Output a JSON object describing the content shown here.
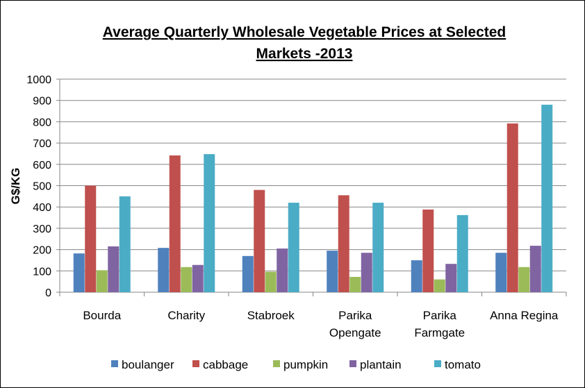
{
  "chart_data": {
    "type": "bar",
    "title_lines": [
      "Average Quarterly Wholesale Vegetable Prices at Selected",
      "Markets -2013"
    ],
    "xlabel": "",
    "ylabel": "G$/KG",
    "ylim": [
      0,
      1000
    ],
    "yticks": [
      0,
      100,
      200,
      300,
      400,
      500,
      600,
      700,
      800,
      900,
      1000
    ],
    "grid": true,
    "legend_position": "bottom",
    "categories": [
      [
        "Bourda"
      ],
      [
        "Charity"
      ],
      [
        "Stabroek"
      ],
      [
        "Parika",
        "Opengate"
      ],
      [
        "Parika",
        "Farmgate"
      ],
      [
        "Anna Regina"
      ]
    ],
    "series": [
      {
        "name": "boulanger",
        "color": "#4F81BD",
        "values": [
          182,
          208,
          170,
          195,
          150,
          185
        ]
      },
      {
        "name": "cabbage",
        "color": "#C0504D",
        "values": [
          500,
          642,
          480,
          455,
          388,
          792
        ]
      },
      {
        "name": "pumpkin",
        "color": "#9BBB59",
        "values": [
          103,
          118,
          96,
          72,
          60,
          118
        ]
      },
      {
        "name": "plantain",
        "color": "#8064A2",
        "values": [
          215,
          128,
          205,
          185,
          133,
          218
        ]
      },
      {
        "name": "tomato",
        "color": "#4BACC6",
        "values": [
          450,
          648,
          420,
          420,
          362,
          880
        ]
      }
    ]
  }
}
